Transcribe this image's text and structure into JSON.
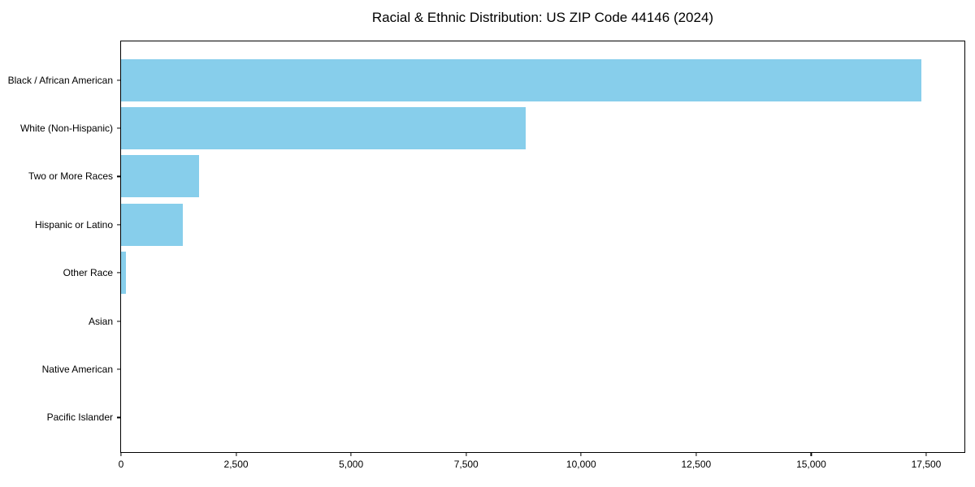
{
  "title": "Racial & Ethnic Distribution: US ZIP Code 44146 (2024)",
  "colors": {
    "bar": "#87CEEB",
    "axis": "#000000",
    "background": "#FFFFFF",
    "text": "#000000"
  },
  "chart_data": {
    "type": "bar",
    "orientation": "horizontal",
    "title": "Racial & Ethnic Distribution: US ZIP Code 44146 (2024)",
    "categories": [
      "Black / African American",
      "White (Non-Hispanic)",
      "Two or More Races",
      "Hispanic or Latino",
      "Other Race",
      "Asian",
      "Native American",
      "Pacific Islander"
    ],
    "values": [
      17400,
      8800,
      1700,
      1340,
      100,
      0,
      0,
      0
    ],
    "xlabel": "",
    "ylabel": "",
    "x_ticks": [
      0,
      2500,
      5000,
      7500,
      10000,
      12500,
      15000,
      17500
    ],
    "x_tick_labels": [
      "0",
      "2,500",
      "5,000",
      "7,500",
      "10,000",
      "12,500",
      "15,000",
      "17,500"
    ],
    "xlim": [
      0,
      18330
    ],
    "grid": false,
    "legend": null,
    "bar_color": "#87CEEB"
  }
}
